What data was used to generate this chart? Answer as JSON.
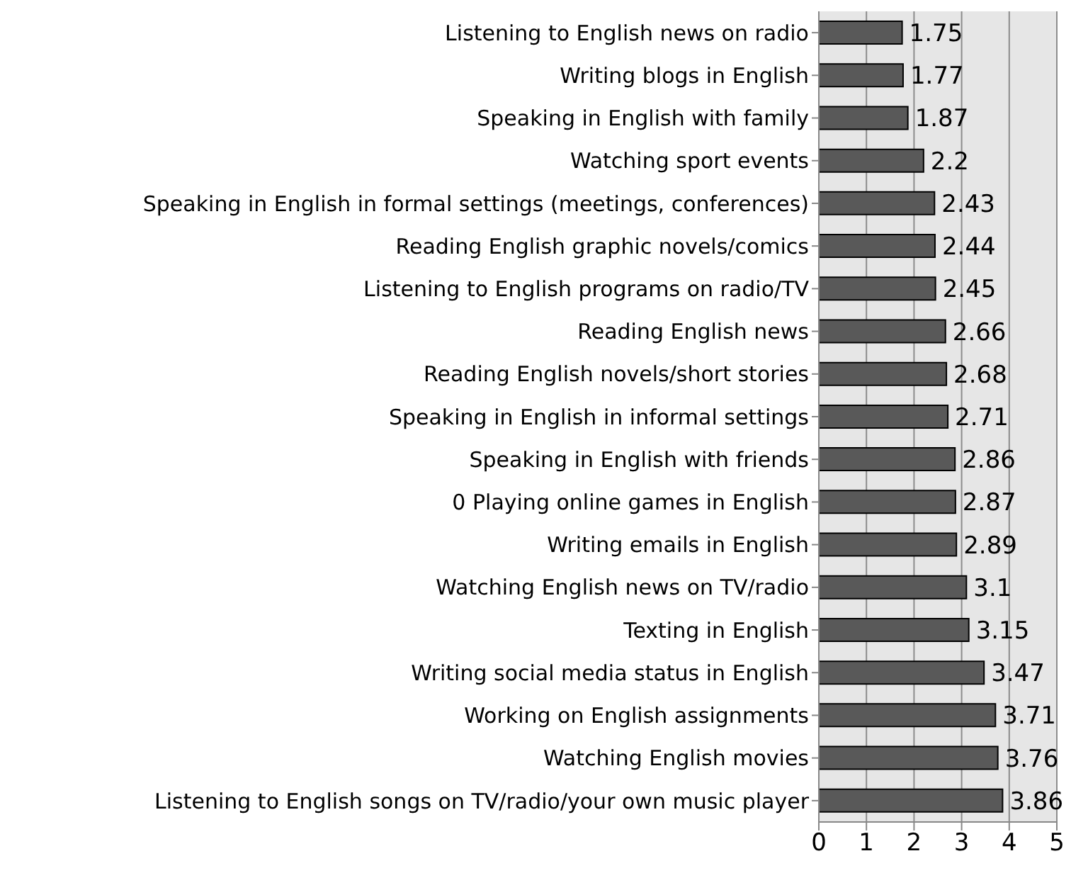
{
  "chart_data": {
    "type": "bar",
    "orientation": "horizontal",
    "categories": [
      "Listening to English news on radio",
      "Writing blogs in English",
      "Speaking in English with family",
      "Watching sport events ",
      "Speaking in English in formal settings (meetings, conferences)",
      "Reading English graphic novels/comics",
      "Listening to English programs on radio/TV",
      "Reading English news",
      "Reading English novels/short stories",
      "Speaking in English in informal settings",
      "Speaking in English with friends",
      "0 Playing online games in English",
      "Writing emails in English ",
      "Watching English news on TV/radio",
      "Texting in English",
      "Writing social media status in English",
      "Working on English assignments ",
      "Watching English movies ",
      "Listening to English songs on TV/radio/your own music player"
    ],
    "values": [
      1.75,
      1.77,
      1.87,
      2.2,
      2.43,
      2.44,
      2.45,
      2.66,
      2.68,
      2.71,
      2.86,
      2.87,
      2.89,
      3.1,
      3.15,
      3.47,
      3.71,
      3.76,
      3.86
    ],
    "color": "#595959",
    "xlim": [
      0,
      5
    ],
    "xticks": [
      0,
      1,
      2,
      3,
      4,
      5
    ],
    "grid": "x",
    "data_labels": true
  }
}
